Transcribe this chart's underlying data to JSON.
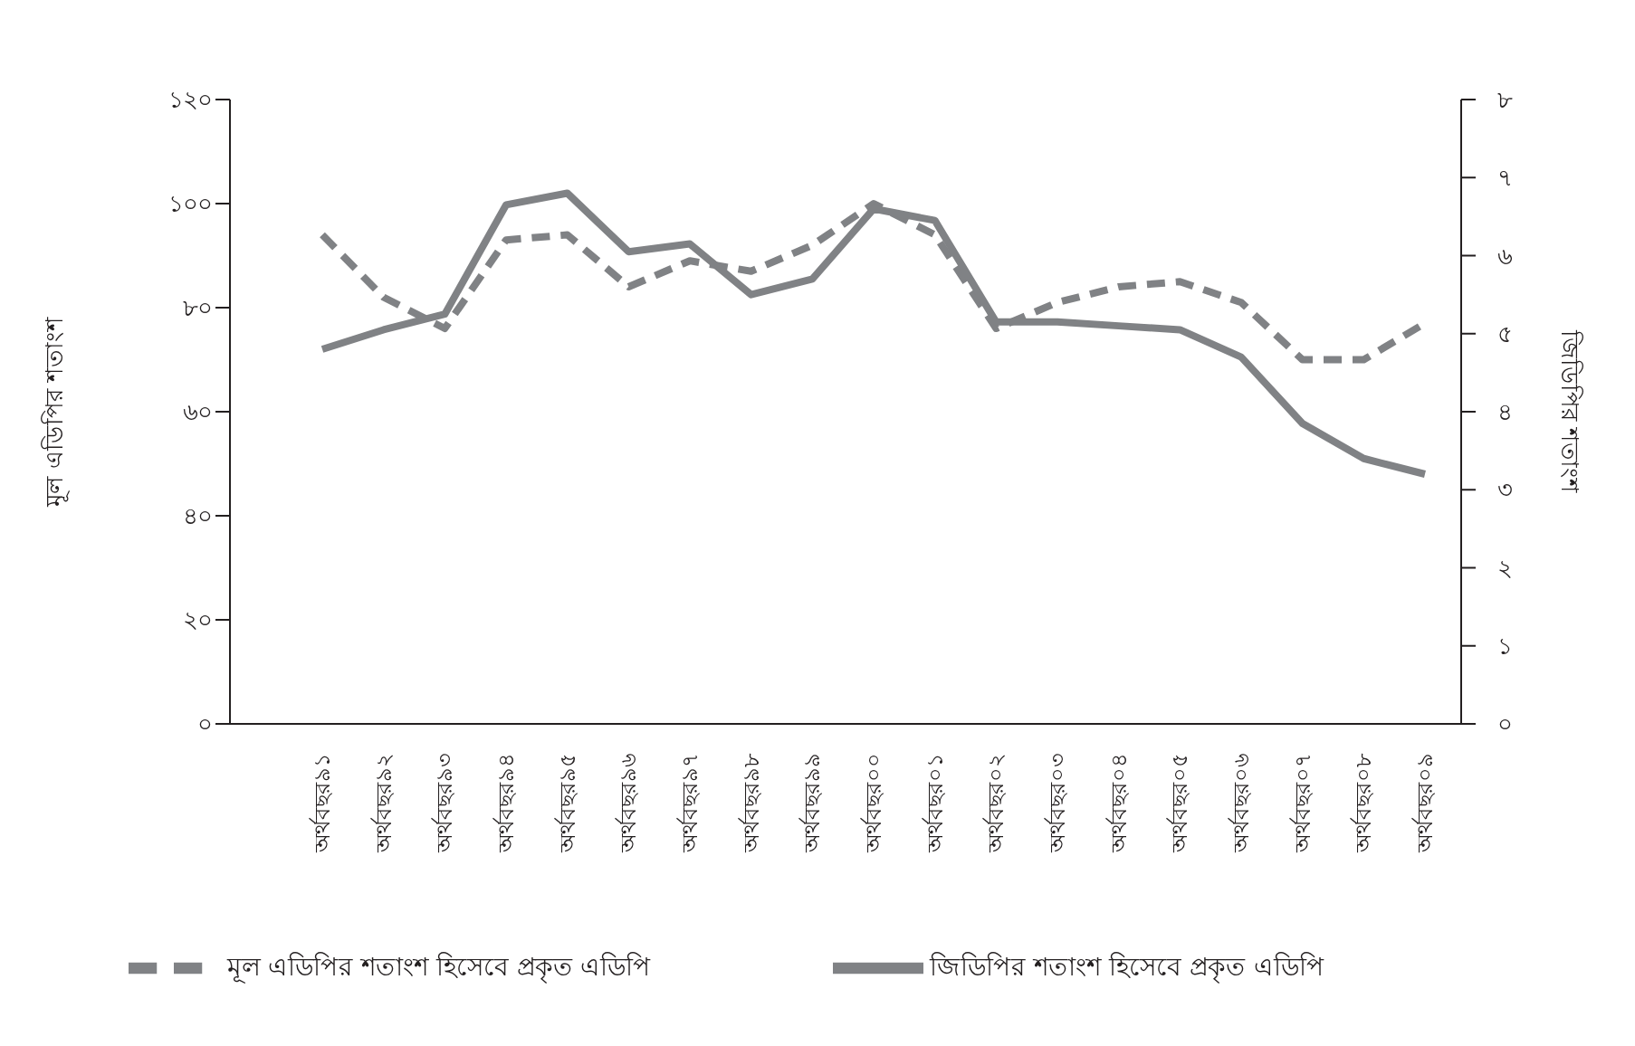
{
  "chart_data": {
    "type": "line",
    "ylabel": "মূল এডিপির শতাংশ",
    "y2label": "জিডিপির শতাংশ",
    "categories": [
      "অর্থবছর৯১",
      "অর্থবছর৯২",
      "অর্থবছর৯৩",
      "অর্থবছর৯৪",
      "অর্থবছর৯৫",
      "অর্থবছর৯৬",
      "অর্থবছর৯৭",
      "অর্থবছর৯৮",
      "অর্থবছর৯৯",
      "অর্থবছর০০",
      "অর্থবছর০১",
      "অর্থবছর০২",
      "অর্থবছর০৩",
      "অর্থবছর০৪",
      "অর্থবছর০৫",
      "অর্থবছর০৬",
      "অর্থবছর০৭",
      "অর্থবছর০৮",
      "অর্থবছর০৯"
    ],
    "series": [
      {
        "name": "মূল এডিপির শতাংশ হিসেবে প্রকৃত এডিপি",
        "color": "#808285",
        "line_style": "dashed",
        "values": [
          94,
          82,
          76,
          93,
          94,
          84,
          89,
          87,
          92,
          100,
          94,
          76,
          81,
          84,
          85,
          81,
          70,
          70,
          77
        ]
      },
      {
        "name": "জিডিপির শতাংশ হিসেবে প্রকৃত এডিপি",
        "color": "#808285",
        "line_style": "solid",
        "axis": "y2",
        "values": [
          4.8,
          5.05,
          5.25,
          6.65,
          6.8,
          6.05,
          6.15,
          5.5,
          5.7,
          6.6,
          6.45,
          5.15,
          5.15,
          5.1,
          5.05,
          4.7,
          3.85,
          3.4,
          3.2
        ]
      }
    ],
    "ylim": [
      0,
      120
    ],
    "yticks": [
      {
        "value": 0,
        "label": "০"
      },
      {
        "value": 20,
        "label": "২০"
      },
      {
        "value": 40,
        "label": "৪০"
      },
      {
        "value": 60,
        "label": "৬০"
      },
      {
        "value": 80,
        "label": "৮০"
      },
      {
        "value": 100,
        "label": "১০০"
      },
      {
        "value": 120,
        "label": "১২০"
      }
    ],
    "y2lim": [
      0,
      8
    ],
    "y2ticks": [
      {
        "value": 0,
        "label": "০"
      },
      {
        "value": 1,
        "label": "১"
      },
      {
        "value": 2,
        "label": "২"
      },
      {
        "value": 3,
        "label": "৩"
      },
      {
        "value": 4,
        "label": "৪"
      },
      {
        "value": 5,
        "label": "৫"
      },
      {
        "value": 6,
        "label": "৬"
      },
      {
        "value": 7,
        "label": "৭"
      },
      {
        "value": 8,
        "label": "৮"
      }
    ],
    "grid": false,
    "legend": "bottom",
    "marker": "none"
  }
}
